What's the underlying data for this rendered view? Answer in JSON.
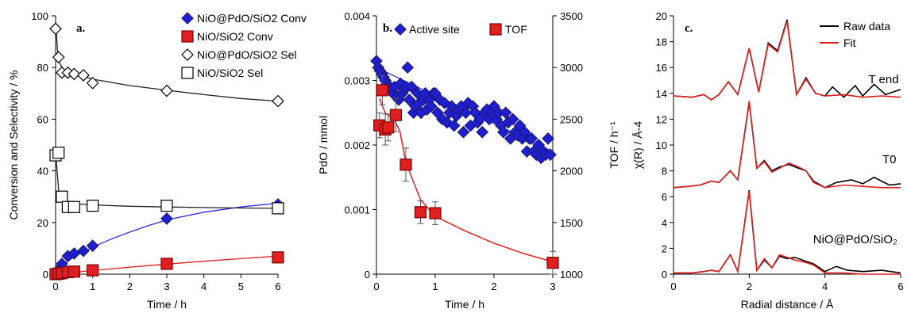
{
  "chart_data": [
    {
      "type": "scatter",
      "panel_label": "a.",
      "xlabel": "Time / h",
      "ylabel": "Conversion and Selectivity / %",
      "xlim": [
        0,
        6
      ],
      "ylim": [
        0,
        100
      ],
      "xticks": [
        0,
        1,
        2,
        3,
        4,
        5,
        6
      ],
      "yticks": [
        0,
        20,
        40,
        60,
        80,
        100
      ],
      "legend": "top-right",
      "series": [
        {
          "name": "NiO@PdO/SiO2 Conv",
          "marker": "diamond-filled",
          "color": "#1f1fd1",
          "x": [
            0,
            0.05,
            0.1,
            0.17,
            0.33,
            0.5,
            0.75,
            1,
            3,
            6
          ],
          "y": [
            0,
            1,
            2,
            4,
            7,
            8,
            9,
            11,
            21.5,
            27
          ],
          "fit": {
            "x": [
              0,
              0.1,
              0.3,
              0.5,
              1,
              1.5,
              2,
              2.5,
              3,
              4,
              5,
              6
            ],
            "y": [
              0,
              1.8,
              4.6,
              6.8,
              10.5,
              13.6,
              16.3,
              18.8,
              21,
              24,
              26,
              27.5
            ]
          }
        },
        {
          "name": "NiO/SiO2 Conv",
          "marker": "square-filled",
          "color": "#e02020",
          "x": [
            0,
            0.08,
            0.17,
            0.33,
            0.5,
            1,
            3,
            6
          ],
          "y": [
            0,
            0.2,
            0.4,
            0.8,
            1,
            1.5,
            4,
            6.5
          ],
          "fit": {
            "x": [
              0,
              0.5,
              1,
              2,
              3,
              4,
              5,
              6
            ],
            "y": [
              0,
              0.7,
              1.4,
              2.7,
              3.9,
              5,
              6,
              7
            ]
          }
        },
        {
          "name": "NiO@PdO/SiO2 Sel",
          "marker": "diamond-open",
          "color": "#000000",
          "x": [
            0,
            0.08,
            0.17,
            0.33,
            0.5,
            0.75,
            1,
            3,
            6
          ],
          "y": [
            95,
            84,
            78,
            78,
            77.5,
            77,
            74,
            71,
            67
          ],
          "fit": {
            "x": [
              0,
              0.05,
              0.1,
              0.2,
              0.33,
              0.5,
              1,
              2,
              3,
              4,
              5,
              6
            ],
            "y": [
              98,
              87,
              82,
              79.5,
              78.5,
              77.5,
              75.5,
              73,
              71.2,
              69.5,
              68,
              67
            ]
          }
        },
        {
          "name": "NiO/SiO2 Sel",
          "marker": "square-open",
          "color": "#000000",
          "x": [
            0,
            0.08,
            0.17,
            0.33,
            0.5,
            1,
            3,
            6
          ],
          "y": [
            46,
            47,
            30,
            26,
            26,
            26.5,
            26.5,
            25.5
          ],
          "fit": {
            "x": [
              0,
              0.04,
              0.08,
              0.12,
              0.2,
              0.3,
              0.5,
              1,
              2,
              3,
              4,
              5,
              6
            ],
            "y": [
              47,
              40,
              33,
              30,
              28.5,
              27.8,
              27.3,
              26.8,
              26.3,
              26,
              25.8,
              25.6,
              25.5
            ]
          }
        }
      ]
    },
    {
      "type": "scatter",
      "panel_label": "b.",
      "xlabel": "Time / h",
      "ylabel": "PdO / mmol",
      "y2label": "TOF / h⁻¹",
      "xlim": [
        0,
        3
      ],
      "ylim": [
        0,
        0.004
      ],
      "y2lim": [
        1000,
        3500
      ],
      "xticks": [
        0,
        1,
        2,
        3
      ],
      "yticks": [
        0,
        0.001,
        0.002,
        0.003,
        0.004
      ],
      "ytick_labels": [
        "0",
        "0.001",
        "0.002",
        "0.003",
        "0.004"
      ],
      "y2ticks": [
        1000,
        1500,
        2000,
        2500,
        3000,
        3500
      ],
      "legend": "top-left",
      "series": [
        {
          "name": "Active site",
          "marker": "diamond-filled",
          "color": "#1f1fd1",
          "axis": "left",
          "x": [
            0,
            0.03,
            0.06,
            0.09,
            0.12,
            0.15,
            0.18,
            0.21,
            0.25,
            0.28,
            0.31,
            0.35,
            0.38,
            0.41,
            0.44,
            0.47,
            0.5,
            0.53,
            0.56,
            0.6,
            0.63,
            0.66,
            0.7,
            0.73,
            0.76,
            0.8,
            0.83,
            0.86,
            0.9,
            0.93,
            0.97,
            1.0,
            1.04,
            1.08,
            1.12,
            1.16,
            1.2,
            1.24,
            1.28,
            1.32,
            1.36,
            1.4,
            1.44,
            1.48,
            1.52,
            1.56,
            1.6,
            1.64,
            1.68,
            1.72,
            1.76,
            1.8,
            1.84,
            1.88,
            1.92,
            1.96,
            2.0,
            2.04,
            2.08,
            2.12,
            2.16,
            2.2,
            2.24,
            2.28,
            2.32,
            2.36,
            2.4,
            2.44,
            2.48,
            2.52,
            2.56,
            2.6,
            2.64,
            2.68,
            2.72,
            2.76,
            2.8,
            2.84,
            2.88,
            2.92,
            2.96
          ],
          "y": [
            0.0033,
            0.0032,
            0.00315,
            0.0031,
            0.00305,
            0.003,
            0.00295,
            0.0029,
            0.00285,
            0.0028,
            0.0029,
            0.00275,
            0.0027,
            0.00295,
            0.0028,
            0.00285,
            0.0029,
            0.0032,
            0.0027,
            0.0029,
            0.0025,
            0.0026,
            0.0028,
            0.00265,
            0.0025,
            0.0027,
            0.0028,
            0.00255,
            0.0027,
            0.0026,
            0.0028,
            0.0028,
            0.0025,
            0.0027,
            0.0024,
            0.00265,
            0.00235,
            0.0025,
            0.0026,
            0.0023,
            0.00245,
            0.00255,
            0.0026,
            0.0022,
            0.0025,
            0.00265,
            0.0023,
            0.0026,
            0.0025,
            0.00235,
            0.0024,
            0.0022,
            0.0025,
            0.00255,
            0.0024,
            0.0025,
            0.0026,
            0.0024,
            0.0025,
            0.0023,
            0.0022,
            0.0025,
            0.00235,
            0.0021,
            0.0024,
            0.0022,
            0.00215,
            0.0023,
            0.0021,
            0.0022,
            0.0019,
            0.0021,
            0.0021,
            0.0019,
            0.00185,
            0.002,
            0.0018,
            0.0019,
            0.00185,
            0.0021,
            0.00185
          ],
          "fit": {
            "x": [
              0,
              3
            ],
            "y": [
              0.0032,
              0.0019
            ]
          }
        },
        {
          "name": "TOF",
          "marker": "square-filled",
          "color": "#e02020",
          "axis": "right",
          "x": [
            0.05,
            0.1,
            0.15,
            0.2,
            0.33,
            0.5,
            0.75,
            1.0,
            3.0
          ],
          "y": [
            2440,
            2780,
            2400,
            2420,
            2540,
            2060,
            1600,
            1590,
            1110
          ],
          "err": [
            120,
            140,
            150,
            130,
            160,
            160,
            110,
            110,
            110
          ],
          "fit": {
            "x": [
              0.05,
              0.15,
              0.3,
              0.4,
              0.5,
              0.75,
              1.0,
              1.5,
              2.0,
              2.5,
              3.0
            ],
            "y": [
              2700,
              2560,
              2500,
              2380,
              2080,
              1720,
              1560,
              1420,
              1300,
              1200,
              1120
            ]
          }
        }
      ]
    },
    {
      "type": "line",
      "panel_label": "c.",
      "xlabel": "Radial distance  / Å",
      "ylabel": "χ(R) / Å-4",
      "xlim": [
        0,
        6
      ],
      "ylim": [
        0,
        20
      ],
      "xticks": [
        0,
        2,
        4,
        6
      ],
      "yticks": [
        0,
        2,
        4,
        6,
        8,
        10,
        12,
        14,
        16,
        18,
        20
      ],
      "legend": "top-right",
      "series_names": [
        "Raw data",
        "Fit"
      ],
      "series_colors": [
        "#000000",
        "#e02020"
      ],
      "annotations": [
        {
          "text": "T end",
          "x": 5.55,
          "y": 14.8
        },
        {
          "text": "T0",
          "x": 5.7,
          "y": 8.6
        },
        {
          "text": "NiO@PdO/SiO₂",
          "x": 4.8,
          "y": 2.4
        }
      ],
      "traces": [
        {
          "label": "T end",
          "offset": 13.7,
          "raw_x": [
            0,
            0.5,
            0.8,
            1.0,
            1.2,
            1.45,
            1.7,
            2.0,
            2.25,
            2.5,
            2.75,
            3.0,
            3.25,
            3.5,
            3.75,
            4.0,
            4.2,
            4.5,
            4.8,
            5.0,
            5.3,
            5.6,
            6.0
          ],
          "raw_y": [
            0.1,
            0.0,
            0.2,
            -0.2,
            0.2,
            1.2,
            0.2,
            3.8,
            0.4,
            4.2,
            3.6,
            6.0,
            0.2,
            1.5,
            0.3,
            0.1,
            0.8,
            0.0,
            0.9,
            0.1,
            1.0,
            0.2,
            0.6
          ],
          "fit_x": [
            0,
            0.5,
            0.8,
            1.0,
            1.2,
            1.45,
            1.7,
            2.0,
            2.25,
            2.5,
            2.75,
            3.0,
            3.25,
            3.5,
            3.75,
            4.0,
            4.5,
            5.0,
            5.5,
            6.0
          ],
          "fit_y": [
            0.1,
            0.0,
            0.2,
            -0.2,
            0.2,
            1.2,
            0.2,
            3.8,
            0.4,
            4.1,
            3.5,
            5.9,
            0.2,
            1.4,
            0.3,
            0.1,
            0.2,
            0.0,
            0.1,
            0.0
          ]
        },
        {
          "label": "T0",
          "offset": 6.7,
          "raw_x": [
            0,
            0.4,
            0.7,
            1.0,
            1.2,
            1.5,
            1.7,
            2.0,
            2.2,
            2.4,
            2.6,
            2.8,
            3.05,
            3.3,
            3.5,
            3.7,
            4.0,
            4.3,
            4.7,
            5.0,
            5.3,
            5.7,
            6.0
          ],
          "raw_y": [
            0.0,
            0.1,
            0.2,
            0.5,
            0.4,
            1.3,
            0.6,
            6.6,
            1.5,
            2.1,
            1.3,
            1.6,
            1.8,
            1.5,
            1.3,
            0.5,
            0.0,
            0.4,
            0.6,
            0.3,
            0.8,
            0.2,
            0.3
          ],
          "fit_x": [
            0,
            0.4,
            0.7,
            1.0,
            1.2,
            1.5,
            1.7,
            2.0,
            2.2,
            2.4,
            2.6,
            2.8,
            3.05,
            3.3,
            3.5,
            3.7,
            4.0,
            4.5,
            5.0,
            5.5,
            6.0
          ],
          "fit_y": [
            0.0,
            0.1,
            0.2,
            0.5,
            0.4,
            1.3,
            0.6,
            6.7,
            1.5,
            2.0,
            1.2,
            1.5,
            1.9,
            1.6,
            1.3,
            0.4,
            0.0,
            0.2,
            0.1,
            0.0,
            0.0
          ]
        },
        {
          "label": "NiO@PdO/SiO2",
          "offset": 0,
          "raw_x": [
            0,
            0.5,
            0.8,
            1.0,
            1.2,
            1.5,
            1.7,
            2.0,
            2.2,
            2.4,
            2.6,
            2.8,
            3.0,
            3.2,
            3.5,
            3.7,
            4.0,
            4.3,
            4.6,
            5.0,
            5.5,
            6.0
          ],
          "raw_y": [
            0.1,
            0.1,
            0.2,
            0.3,
            0.2,
            1.5,
            0.2,
            6.5,
            0.3,
            1.1,
            0.5,
            1.4,
            1.2,
            1.3,
            1.0,
            0.8,
            0.2,
            0.6,
            0.3,
            0.2,
            0.3,
            0.1
          ],
          "fit_x": [
            0,
            0.5,
            0.8,
            1.0,
            1.2,
            1.5,
            1.7,
            2.0,
            2.2,
            2.4,
            2.6,
            2.8,
            3.0,
            3.2,
            3.5,
            3.7,
            4.0,
            4.5,
            5.0,
            6.0
          ],
          "fit_y": [
            0.1,
            0.1,
            0.2,
            0.3,
            0.2,
            1.5,
            0.2,
            6.4,
            0.3,
            1.2,
            0.5,
            1.5,
            1.3,
            1.1,
            0.9,
            0.7,
            0.1,
            0.1,
            0.0,
            0.0
          ]
        }
      ]
    }
  ]
}
